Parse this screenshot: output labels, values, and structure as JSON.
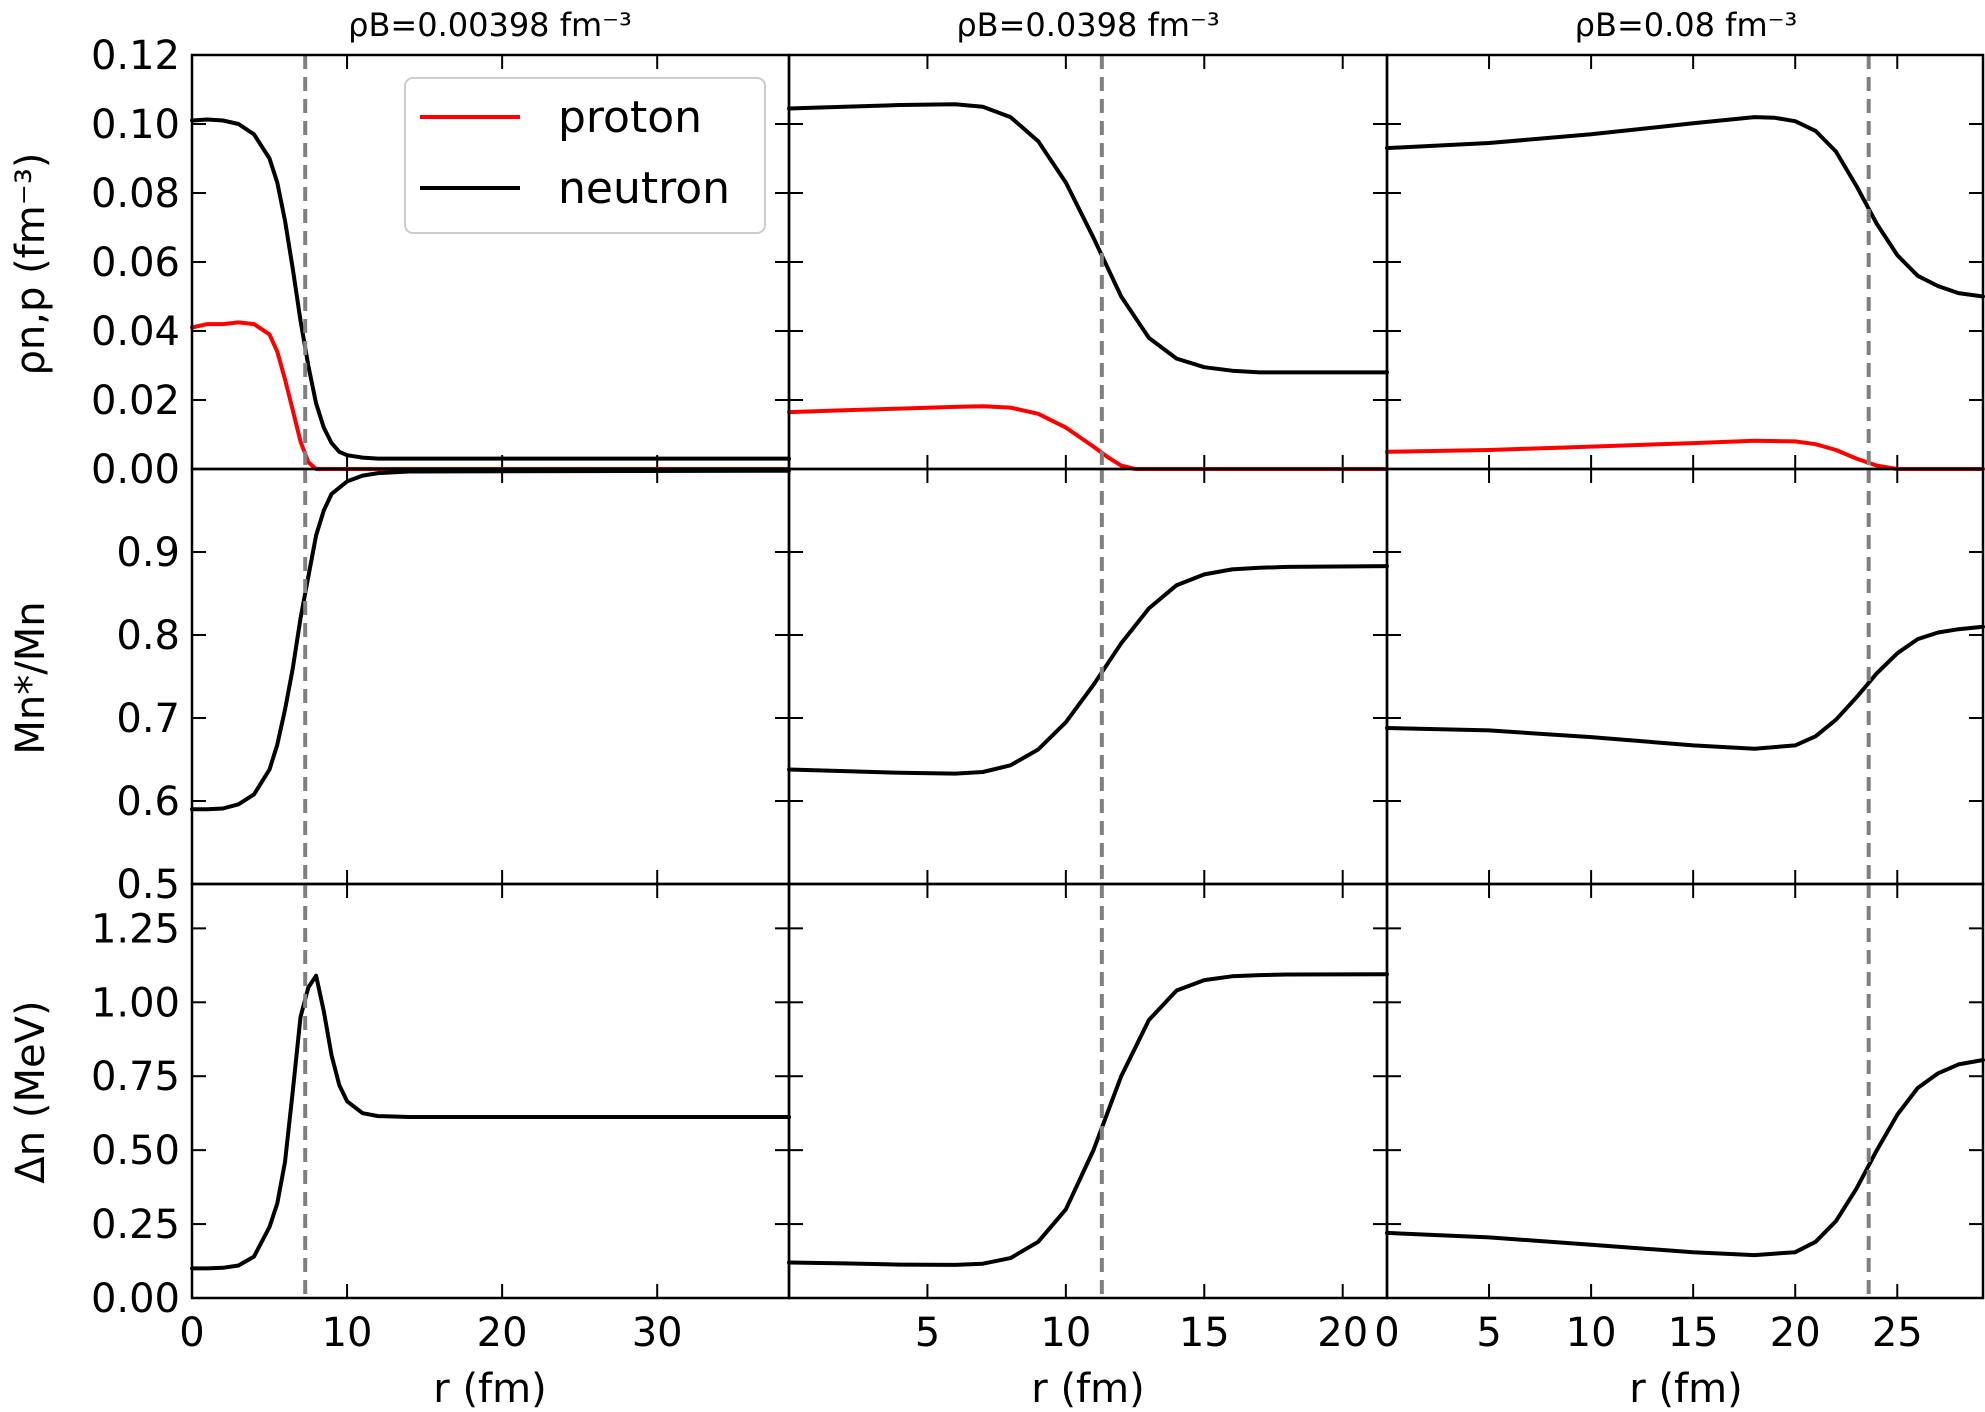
{
  "chart_data": {
    "type": "line",
    "columns": [
      {
        "title": "ρB=0.00398 fm⁻³",
        "xlabel": "r (fm)",
        "xlim": [
          0,
          38.5
        ],
        "xticks": [
          0,
          10,
          20,
          30
        ],
        "vline": 7.3
      },
      {
        "title": "ρB=0.0398 fm⁻³",
        "xlabel": "r (fm)",
        "xlim": [
          0,
          21.6
        ],
        "xticks": [
          5,
          10,
          15,
          20
        ],
        "vline": 11.3
      },
      {
        "title": "ρB=0.08 fm⁻³",
        "xlabel": "r (fm)",
        "xlim": [
          0,
          29.2
        ],
        "xticks": [
          0,
          5,
          10,
          15,
          20,
          25
        ],
        "vline": 23.6
      }
    ],
    "rows": [
      {
        "ylabel": "ρn,p (fm⁻³)",
        "ylim": [
          0,
          0.12
        ],
        "yticks": [
          "0.00",
          "0.02",
          "0.04",
          "0.06",
          "0.08",
          "0.10",
          "0.12"
        ]
      },
      {
        "ylabel": "Mn*/Mn",
        "ylim": [
          0.5,
          1.0
        ],
        "yticks": [
          "0.5",
          "0.6",
          "0.7",
          "0.8",
          "0.9"
        ]
      },
      {
        "ylabel": "Δn (MeV)",
        "ylim": [
          0,
          1.4
        ],
        "yticks": [
          "0.00",
          "0.25",
          "0.50",
          "0.75",
          "1.00",
          "1.25"
        ]
      }
    ],
    "legend": {
      "entries": [
        {
          "name": "proton",
          "color": "#ff0000"
        },
        {
          "name": "neutron",
          "color": "#000000"
        }
      ],
      "placement": "top-right of first panel"
    },
    "grid": false,
    "panels": [
      [
        {
          "series": [
            {
              "name": "proton",
              "color": "#ff0000",
              "x": [
                0,
                1,
                2,
                3,
                4,
                5,
                5.5,
                6,
                6.5,
                7,
                7.5,
                8,
                8.5,
                9,
                38.5
              ],
              "y": [
                0.041,
                0.042,
                0.042,
                0.0425,
                0.042,
                0.039,
                0.034,
                0.026,
                0.017,
                0.008,
                0.002,
                0.0,
                0.0,
                0.0,
                0.0
              ]
            },
            {
              "name": "neutron",
              "color": "#000000",
              "x": [
                0,
                1,
                2,
                3,
                4,
                5,
                5.5,
                6,
                6.5,
                7,
                7.5,
                8,
                8.5,
                9,
                9.5,
                10,
                11,
                12,
                14,
                38.5
              ],
              "y": [
                0.101,
                0.1013,
                0.101,
                0.1,
                0.097,
                0.09,
                0.083,
                0.072,
                0.058,
                0.043,
                0.03,
                0.019,
                0.012,
                0.0075,
                0.005,
                0.004,
                0.0033,
                0.003,
                0.003,
                0.003
              ]
            }
          ]
        },
        {
          "series": [
            {
              "name": "proton",
              "color": "#ff0000",
              "x": [
                0,
                2,
                4,
                6,
                7,
                8,
                9,
                10,
                11,
                11.5,
                12,
                12.5,
                21.6
              ],
              "y": [
                0.0165,
                0.017,
                0.0175,
                0.018,
                0.0182,
                0.0178,
                0.016,
                0.012,
                0.0065,
                0.0035,
                0.001,
                0.0,
                0.0
              ]
            },
            {
              "name": "neutron",
              "color": "#000000",
              "x": [
                0,
                2,
                4,
                6,
                7,
                8,
                9,
                10,
                11,
                12,
                13,
                14,
                15,
                16,
                17,
                18,
                21.6
              ],
              "y": [
                0.1045,
                0.105,
                0.1055,
                0.1057,
                0.105,
                0.102,
                0.095,
                0.083,
                0.067,
                0.05,
                0.038,
                0.032,
                0.0295,
                0.0285,
                0.028,
                0.028,
                0.028
              ]
            }
          ]
        },
        {
          "series": [
            {
              "name": "proton",
              "color": "#ff0000",
              "x": [
                0,
                5,
                10,
                15,
                18,
                20,
                21,
                22,
                23,
                24,
                25,
                26,
                29.2
              ],
              "y": [
                0.005,
                0.0055,
                0.0065,
                0.0075,
                0.0082,
                0.008,
                0.0072,
                0.0055,
                0.003,
                0.001,
                0.0,
                0.0,
                0.0
              ]
            },
            {
              "name": "neutron",
              "color": "#000000",
              "x": [
                0,
                5,
                10,
                15,
                18,
                19,
                20,
                21,
                22,
                23,
                24,
                25,
                26,
                27,
                28,
                29.2
              ],
              "y": [
                0.093,
                0.0945,
                0.097,
                0.1002,
                0.102,
                0.1018,
                0.1008,
                0.098,
                0.092,
                0.082,
                0.071,
                0.062,
                0.056,
                0.053,
                0.051,
                0.05
              ]
            }
          ]
        }
      ],
      [
        {
          "series": [
            {
              "name": "neutron",
              "color": "#000000",
              "x": [
                0,
                1,
                2,
                3,
                4,
                5,
                5.5,
                6,
                6.5,
                7,
                7.5,
                8,
                8.5,
                9,
                10,
                11,
                12,
                14,
                38.5
              ],
              "y": [
                0.59,
                0.59,
                0.591,
                0.596,
                0.608,
                0.638,
                0.668,
                0.71,
                0.76,
                0.82,
                0.87,
                0.92,
                0.95,
                0.97,
                0.985,
                0.992,
                0.995,
                0.997,
                0.998
              ]
            }
          ]
        },
        {
          "series": [
            {
              "name": "neutron",
              "color": "#000000",
              "x": [
                0,
                2,
                4,
                6,
                7,
                8,
                9,
                10,
                11,
                12,
                13,
                14,
                15,
                16,
                17,
                18,
                21.6
              ],
              "y": [
                0.638,
                0.636,
                0.634,
                0.633,
                0.635,
                0.643,
                0.662,
                0.695,
                0.74,
                0.79,
                0.832,
                0.86,
                0.873,
                0.879,
                0.881,
                0.882,
                0.883
              ]
            }
          ]
        },
        {
          "series": [
            {
              "name": "neutron",
              "color": "#000000",
              "x": [
                0,
                5,
                10,
                15,
                18,
                20,
                21,
                22,
                23,
                24,
                25,
                26,
                27,
                28,
                29.2
              ],
              "y": [
                0.688,
                0.685,
                0.677,
                0.667,
                0.663,
                0.667,
                0.678,
                0.698,
                0.725,
                0.754,
                0.778,
                0.795,
                0.803,
                0.807,
                0.81
              ]
            }
          ]
        }
      ],
      [
        {
          "series": [
            {
              "name": "neutron",
              "color": "#000000",
              "x": [
                0,
                1,
                2,
                3,
                4,
                5,
                5.5,
                6,
                6.5,
                7,
                7.5,
                8,
                8.5,
                9,
                9.5,
                10,
                11,
                12,
                14,
                38.5
              ],
              "y": [
                0.1,
                0.1,
                0.102,
                0.11,
                0.14,
                0.24,
                0.32,
                0.46,
                0.7,
                0.95,
                1.05,
                1.09,
                0.97,
                0.82,
                0.72,
                0.665,
                0.625,
                0.615,
                0.612,
                0.612
              ]
            }
          ]
        },
        {
          "series": [
            {
              "name": "neutron",
              "color": "#000000",
              "x": [
                0,
                2,
                4,
                6,
                7,
                8,
                9,
                10,
                11,
                12,
                13,
                14,
                15,
                16,
                17,
                18,
                21.6
              ],
              "y": [
                0.12,
                0.117,
                0.113,
                0.112,
                0.116,
                0.135,
                0.19,
                0.3,
                0.5,
                0.75,
                0.94,
                1.04,
                1.075,
                1.088,
                1.092,
                1.094,
                1.095
              ]
            }
          ]
        },
        {
          "series": [
            {
              "name": "neutron",
              "color": "#000000",
              "x": [
                0,
                5,
                10,
                15,
                18,
                20,
                21,
                22,
                23,
                24,
                25,
                26,
                27,
                28,
                29.2
              ],
              "y": [
                0.22,
                0.205,
                0.18,
                0.155,
                0.145,
                0.155,
                0.19,
                0.26,
                0.37,
                0.5,
                0.62,
                0.71,
                0.76,
                0.79,
                0.805
              ]
            }
          ]
        }
      ]
    ]
  }
}
